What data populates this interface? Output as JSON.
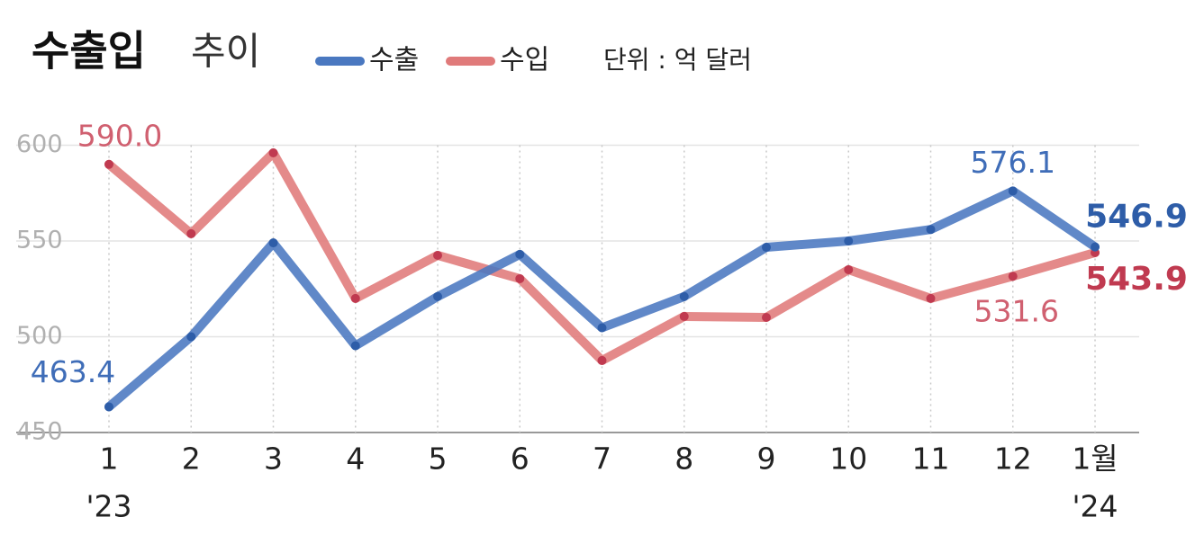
{
  "chart_data": {
    "type": "line",
    "title": "수출입",
    "subtitle": "추이",
    "unit": "단위 : 억 달러",
    "categories": [
      "1",
      "2",
      "3",
      "4",
      "5",
      "6",
      "7",
      "8",
      "9",
      "10",
      "11",
      "12",
      "1월"
    ],
    "x_sublabels": [
      "'23",
      null,
      null,
      null,
      null,
      null,
      null,
      null,
      null,
      null,
      null,
      null,
      "'24"
    ],
    "series": [
      {
        "name": "수출",
        "color": "#4a78c0",
        "values": [
          463.4,
          500,
          549,
          495.3,
          521,
          543,
          504.7,
          521,
          546.7,
          550,
          556,
          576.1,
          546.9
        ],
        "value_labels": [
          "463.4",
          null,
          null,
          null,
          null,
          null,
          null,
          null,
          null,
          null,
          null,
          "576.1",
          "546.9"
        ]
      },
      {
        "name": "수입",
        "color": "#e07a7a",
        "values": [
          590.0,
          553.8,
          596,
          520,
          542.5,
          530.3,
          487.6,
          510.6,
          510.1,
          535,
          520,
          531.6,
          543.9
        ],
        "value_labels": [
          "590.0",
          null,
          null,
          null,
          null,
          null,
          null,
          null,
          null,
          null,
          null,
          "531.6",
          "543.9"
        ]
      }
    ],
    "ylim": [
      450,
      615
    ],
    "yticks": [
      450,
      500,
      550,
      600
    ],
    "grid": true
  }
}
